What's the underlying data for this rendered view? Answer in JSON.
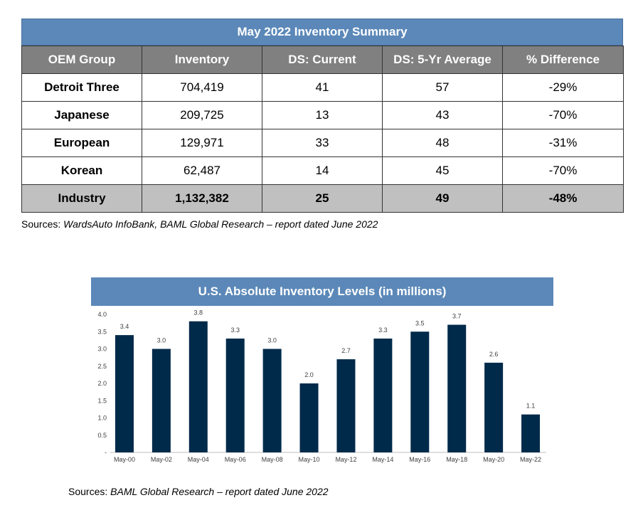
{
  "table": {
    "title": "May 2022 Inventory Summary",
    "headers": [
      "OEM Group",
      "Inventory",
      "DS: Current",
      "DS: 5-Yr Average",
      "% Difference"
    ],
    "rows": [
      [
        "Detroit Three",
        "704,419",
        "41",
        "57",
        "-29%"
      ],
      [
        "Japanese",
        "209,725",
        "13",
        "43",
        "-70%"
      ],
      [
        "European",
        "129,971",
        "33",
        "48",
        "-31%"
      ],
      [
        "Korean",
        "62,487",
        "14",
        "45",
        "-70%"
      ]
    ],
    "total": [
      "Industry",
      "1,132,382",
      "25",
      "49",
      "-48%"
    ]
  },
  "sources_table": {
    "prefix": "Sources: ",
    "text": "WardsAuto InfoBank, BAML Global Research – report dated June 2022"
  },
  "sources_chart": {
    "prefix": "Sources: ",
    "text": "BAML Global Research – report dated June 2022"
  },
  "chart_data": {
    "type": "bar",
    "title": "U.S. Absolute Inventory Levels (in millions)",
    "categories": [
      "May-00",
      "May-02",
      "May-04",
      "May-06",
      "May-08",
      "May-10",
      "May-12",
      "May-14",
      "May-16",
      "May-18",
      "May-20",
      "May-22"
    ],
    "values": [
      3.4,
      3.0,
      3.8,
      3.3,
      3.0,
      2.0,
      2.7,
      3.3,
      3.5,
      3.7,
      2.6,
      1.1
    ],
    "data_labels": [
      "3.4",
      "3.0",
      "3.8",
      "3.3",
      "3.0",
      "2.0",
      "2.7",
      "3.3",
      "3.5",
      "3.7",
      "2.6",
      "1.1"
    ],
    "y_ticks": [
      "-",
      "0.5",
      "1.0",
      "1.5",
      "2.0",
      "2.5",
      "3.0",
      "3.5",
      "4.0"
    ],
    "ylim": [
      0,
      4.0
    ],
    "grid": false,
    "legend": "none",
    "bar_color": "#002a4a",
    "xlabel": "",
    "ylabel": ""
  }
}
